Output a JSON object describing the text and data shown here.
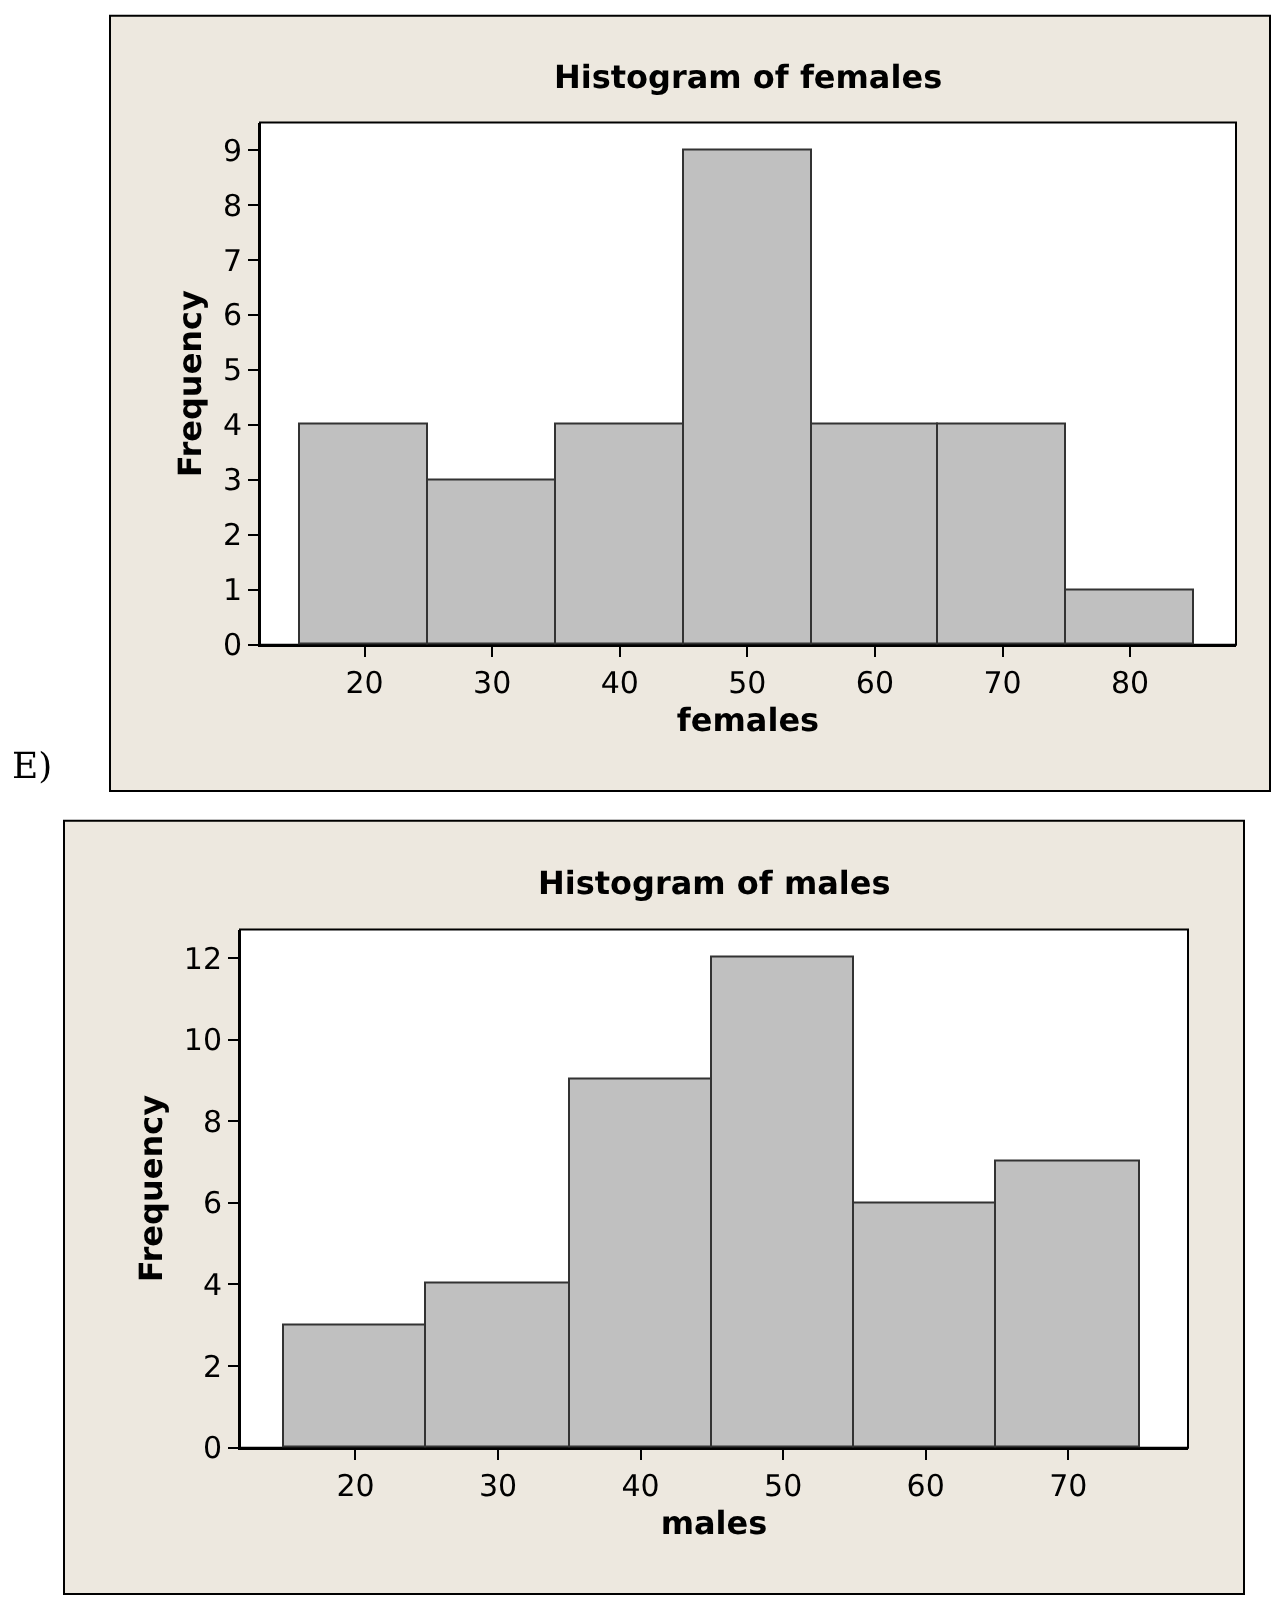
{
  "chart_data": [
    {
      "type": "histogram",
      "title": "Histogram of females",
      "xlabel": "females",
      "ylabel": "Frequency",
      "bins": [
        15,
        25,
        35,
        45,
        55,
        65,
        75,
        85
      ],
      "values": [
        4,
        3,
        4,
        9,
        4,
        4,
        1
      ],
      "color": "#c0c0c0",
      "xlim": [
        11.8,
        88.3
      ],
      "xticks": [
        20,
        30,
        40,
        50,
        60,
        70,
        80
      ],
      "ylim": [
        0,
        9.5
      ],
      "yticks": [
        0,
        1,
        2,
        3,
        4,
        5,
        6,
        7,
        8,
        9
      ],
      "grid": false,
      "annotations": [
        "E)"
      ]
    },
    {
      "type": "histogram",
      "title": "Histogram of males",
      "xlabel": "males",
      "ylabel": "Frequency",
      "bins": [
        15,
        25,
        35,
        45,
        55,
        65,
        75
      ],
      "values": [
        3,
        4,
        9,
        12,
        6,
        7
      ],
      "color": "#c0c0c0",
      "xlim": [
        11.9,
        78.4
      ],
      "xticks": [
        20,
        30,
        40,
        50,
        60,
        70
      ],
      "ylim": [
        0,
        12.7
      ],
      "yticks": [
        0,
        2,
        4,
        6,
        8,
        10,
        12
      ],
      "grid": false
    }
  ]
}
